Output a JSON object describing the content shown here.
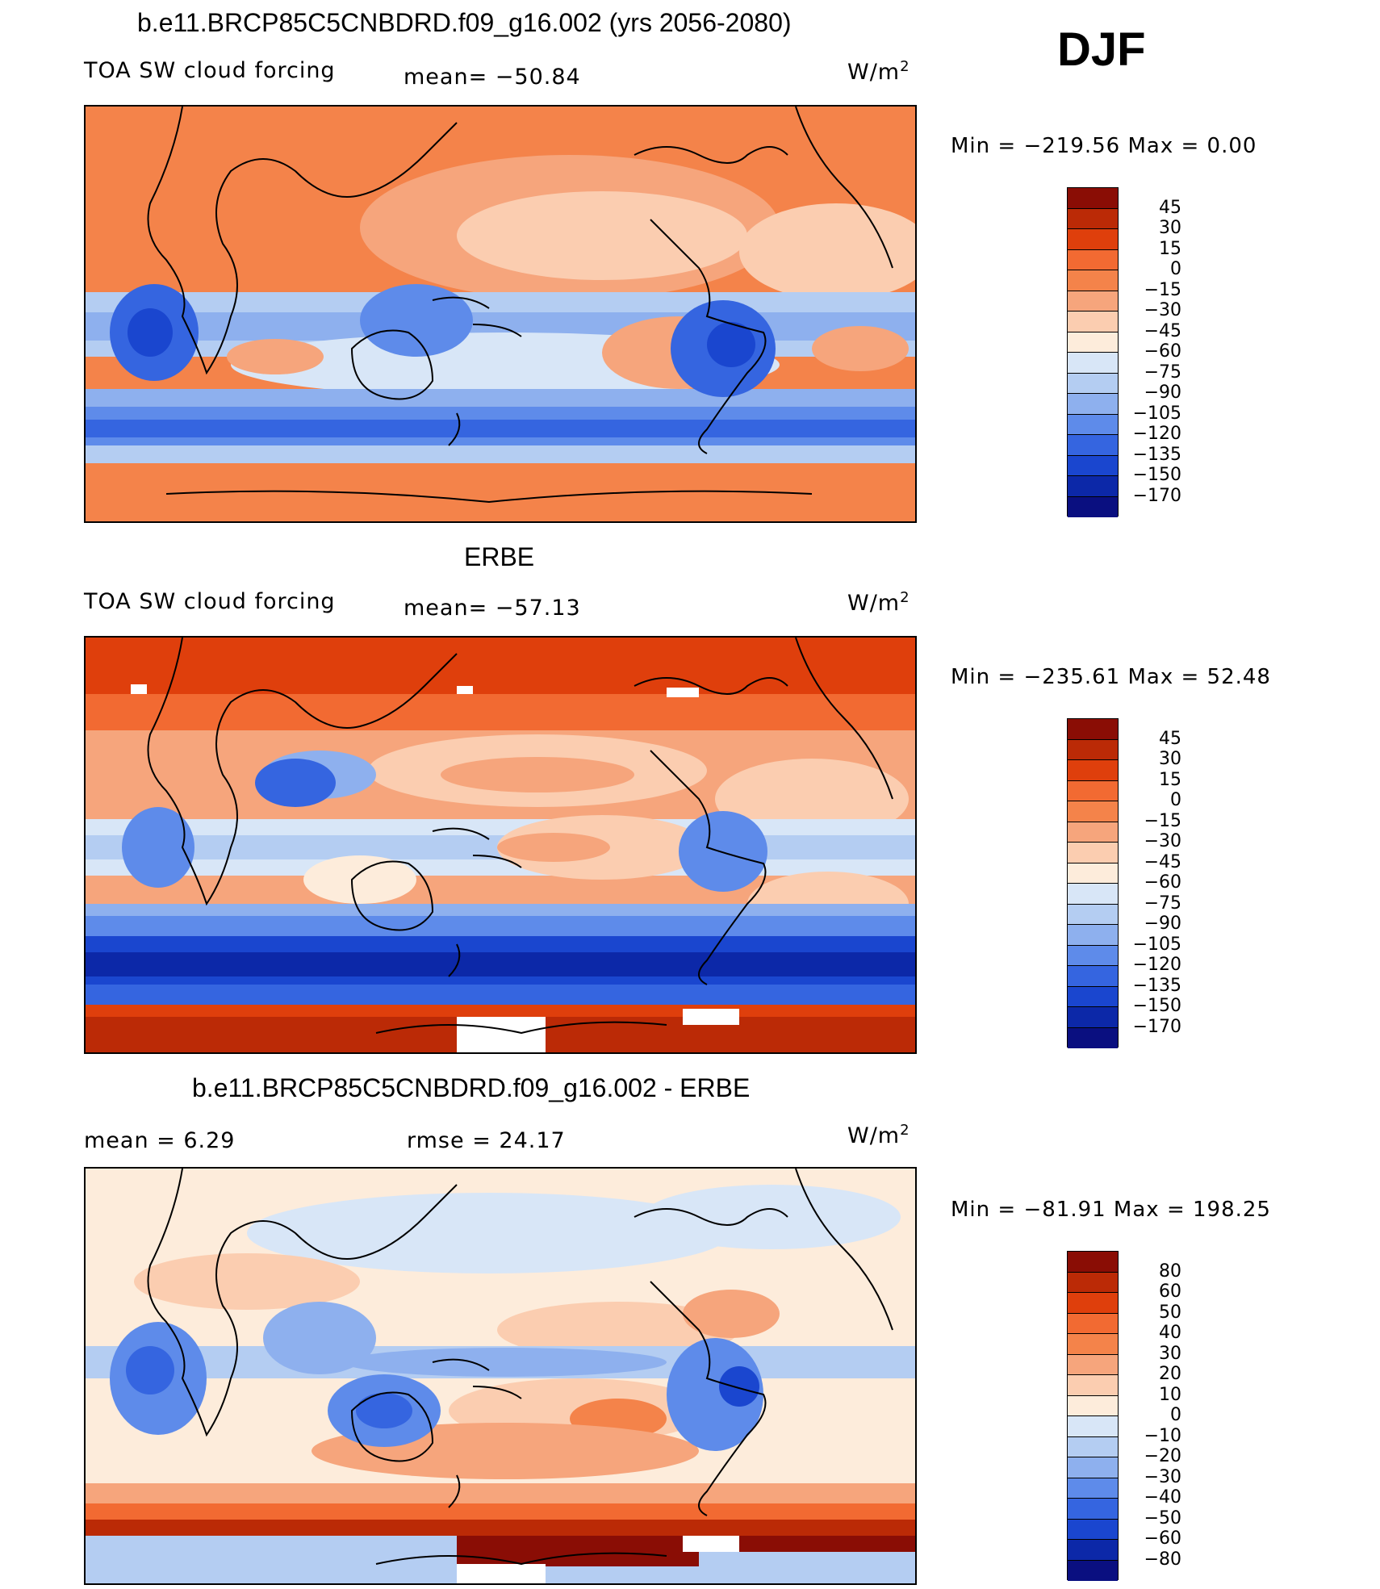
{
  "season": "DJF",
  "units_html": "W/m",
  "units_sup": "2",
  "chart_data": [
    {
      "type": "heatmap",
      "title": "b.e11.BRCP85C5CNBDRD.f09_g16.002 (yrs 2056-2080)",
      "subtitle": "TOA SW cloud forcing",
      "stat_text": "mean=  −50.84",
      "units": "W/m",
      "units_sup": "2",
      "minmax_text": "Min  =  −219.56  Max  =     0.00",
      "mean": -50.84,
      "min": -219.56,
      "max": 0.0,
      "levels": [
        "45",
        "30",
        "15",
        "0",
        "−15",
        "−30",
        "−45",
        "−60",
        "−75",
        "−90",
        "−105",
        "−120",
        "−135",
        "−150",
        "−170"
      ],
      "colors": [
        "#8a0d05",
        "#bb2a06",
        "#df3f0c",
        "#f26a32",
        "#f4834a",
        "#f6a57c",
        "#fbcdb0",
        "#fdecdb",
        "#d8e6f7",
        "#b4cdf2",
        "#8eb0ee",
        "#5e8bea",
        "#3565e0",
        "#1a46cf",
        "#0c28a8",
        "#0a0f80"
      ]
    },
    {
      "type": "heatmap",
      "title": "ERBE",
      "subtitle": "TOA SW cloud forcing",
      "stat_text": "mean=  −57.13",
      "units": "W/m",
      "units_sup": "2",
      "minmax_text": "Min  =  −235.61  Max  =   52.48",
      "mean": -57.13,
      "min": -235.61,
      "max": 52.48,
      "levels": [
        "45",
        "30",
        "15",
        "0",
        "−15",
        "−30",
        "−45",
        "−60",
        "−75",
        "−90",
        "−105",
        "−120",
        "−135",
        "−150",
        "−170"
      ],
      "colors": [
        "#8a0d05",
        "#bb2a06",
        "#df3f0c",
        "#f26a32",
        "#f4834a",
        "#f6a57c",
        "#fbcdb0",
        "#fdecdb",
        "#d8e6f7",
        "#b4cdf2",
        "#8eb0ee",
        "#5e8bea",
        "#3565e0",
        "#1a46cf",
        "#0c28a8",
        "#0a0f80"
      ]
    },
    {
      "type": "heatmap",
      "title": "b.e11.BRCP85C5CNBDRD.f09_g16.002 - ERBE",
      "subtitle": "mean  =      6.29",
      "stat_text": "rmse  =    24.17",
      "units": "W/m",
      "units_sup": "2",
      "minmax_text": "Min  =  −81.91  Max  =  198.25",
      "mean": 6.29,
      "rmse": 24.17,
      "min": -81.91,
      "max": 198.25,
      "levels": [
        "80",
        "60",
        "50",
        "40",
        "30",
        "20",
        "10",
        "0",
        "−10",
        "−20",
        "−30",
        "−40",
        "−50",
        "−60",
        "−80"
      ],
      "colors": [
        "#8a0d05",
        "#bb2a06",
        "#df3f0c",
        "#f26a32",
        "#f4834a",
        "#f6a57c",
        "#fbcdb0",
        "#fdecdb",
        "#d8e6f7",
        "#b4cdf2",
        "#8eb0ee",
        "#5e8bea",
        "#3565e0",
        "#1a46cf",
        "#0c28a8",
        "#0a0f80"
      ]
    }
  ]
}
